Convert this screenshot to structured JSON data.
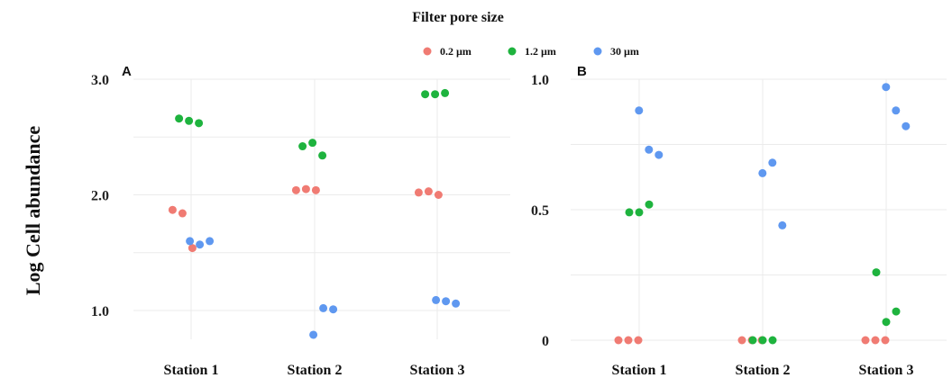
{
  "legend": {
    "title": "Filter pore size",
    "entries": [
      {
        "label": "0.2 µm",
        "color": "#F07B73"
      },
      {
        "label": "1.2 µm",
        "color": "#1EB33E"
      },
      {
        "label": "30 µm",
        "color": "#5F98F0"
      }
    ]
  },
  "ylabel": "Log Cell abundance",
  "chart_data": [
    {
      "type": "scatter",
      "panel_label": "A",
      "categories": [
        "Station 1",
        "Station 2",
        "Station 3"
      ],
      "ylim": [
        0.75,
        3.0
      ],
      "yticks": [
        {
          "value": 1.0,
          "label": "1.0"
        },
        {
          "value": 2.0,
          "label": "2.0"
        },
        {
          "value": 3.0,
          "label": "3.0"
        }
      ],
      "grid": true,
      "series": [
        {
          "name": "0.2 µm",
          "color": "#F07B73",
          "points": [
            {
              "category": "Station 1",
              "y": 1.87
            },
            {
              "category": "Station 1",
              "y": 1.84
            },
            {
              "category": "Station 1",
              "y": 1.54
            },
            {
              "category": "Station 2",
              "y": 2.04
            },
            {
              "category": "Station 2",
              "y": 2.05
            },
            {
              "category": "Station 2",
              "y": 2.04
            },
            {
              "category": "Station 3",
              "y": 2.02
            },
            {
              "category": "Station 3",
              "y": 2.03
            },
            {
              "category": "Station 3",
              "y": 2.0
            }
          ]
        },
        {
          "name": "1.2 µm",
          "color": "#1EB33E",
          "points": [
            {
              "category": "Station 1",
              "y": 2.66
            },
            {
              "category": "Station 1",
              "y": 2.64
            },
            {
              "category": "Station 1",
              "y": 2.62
            },
            {
              "category": "Station 2",
              "y": 2.42
            },
            {
              "category": "Station 2",
              "y": 2.45
            },
            {
              "category": "Station 2",
              "y": 2.34
            },
            {
              "category": "Station 3",
              "y": 2.87
            },
            {
              "category": "Station 3",
              "y": 2.87
            },
            {
              "category": "Station 3",
              "y": 2.88
            }
          ]
        },
        {
          "name": "30 µm",
          "color": "#5F98F0",
          "points": [
            {
              "category": "Station 1",
              "y": 1.6
            },
            {
              "category": "Station 1",
              "y": 1.57
            },
            {
              "category": "Station 1",
              "y": 1.6
            },
            {
              "category": "Station 2",
              "y": 0.79
            },
            {
              "category": "Station 2",
              "y": 1.02
            },
            {
              "category": "Station 2",
              "y": 1.01
            },
            {
              "category": "Station 3",
              "y": 1.09
            },
            {
              "category": "Station 3",
              "y": 1.08
            },
            {
              "category": "Station 3",
              "y": 1.06
            }
          ]
        }
      ]
    },
    {
      "type": "scatter",
      "panel_label": "B",
      "categories": [
        "Station 1",
        "Station 2",
        "Station 3"
      ],
      "ylim": [
        -0.01,
        1.0
      ],
      "yticks": [
        {
          "value": 0,
          "label": "0"
        },
        {
          "value": 0.5,
          "label": "0.5"
        },
        {
          "value": 1.0,
          "label": "1.0"
        }
      ],
      "grid": true,
      "series": [
        {
          "name": "0.2 µm",
          "color": "#F07B73",
          "points": [
            {
              "category": "Station 1",
              "y": 0.0
            },
            {
              "category": "Station 1",
              "y": 0.0
            },
            {
              "category": "Station 1",
              "y": 0.0
            },
            {
              "category": "Station 2",
              "y": 0.0
            },
            {
              "category": "Station 2",
              "y": 0.0
            },
            {
              "category": "Station 2",
              "y": 0.0
            },
            {
              "category": "Station 3",
              "y": 0.0
            },
            {
              "category": "Station 3",
              "y": 0.0
            },
            {
              "category": "Station 3",
              "y": 0.0
            }
          ]
        },
        {
          "name": "1.2 µm",
          "color": "#1EB33E",
          "points": [
            {
              "category": "Station 1",
              "y": 0.49
            },
            {
              "category": "Station 1",
              "y": 0.49
            },
            {
              "category": "Station 1",
              "y": 0.52
            },
            {
              "category": "Station 2",
              "y": 0.0
            },
            {
              "category": "Station 2",
              "y": 0.0
            },
            {
              "category": "Station 2",
              "y": 0.0
            },
            {
              "category": "Station 3",
              "y": 0.26
            },
            {
              "category": "Station 3",
              "y": 0.07
            },
            {
              "category": "Station 3",
              "y": 0.11
            }
          ]
        },
        {
          "name": "30 µm",
          "color": "#5F98F0",
          "points": [
            {
              "category": "Station 1",
              "y": 0.88
            },
            {
              "category": "Station 1",
              "y": 0.73
            },
            {
              "category": "Station 1",
              "y": 0.71
            },
            {
              "category": "Station 2",
              "y": 0.64
            },
            {
              "category": "Station 2",
              "y": 0.68
            },
            {
              "category": "Station 2",
              "y": 0.44
            },
            {
              "category": "Station 3",
              "y": 0.97
            },
            {
              "category": "Station 3",
              "y": 0.88
            },
            {
              "category": "Station 3",
              "y": 0.82
            }
          ]
        }
      ]
    }
  ]
}
